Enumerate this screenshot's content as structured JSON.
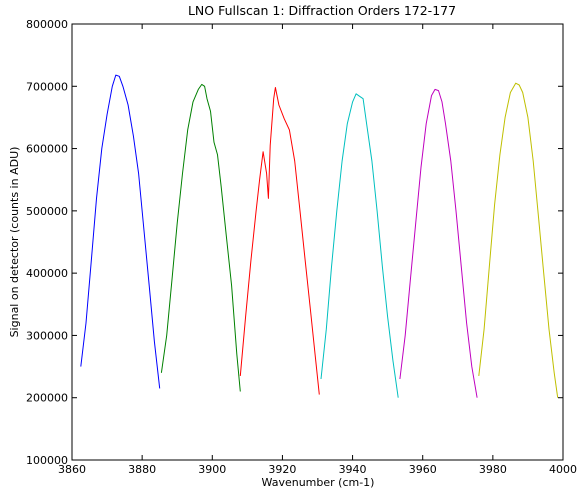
{
  "chart_data": {
    "type": "line",
    "title": "LNO Fullscan 1: Diffraction Orders 172-177",
    "xlabel": "Wavenumber (cm-1)",
    "ylabel": "Signal on detector (counts in ADU)",
    "xlim": [
      3860,
      4000
    ],
    "ylim": [
      100000,
      800000
    ],
    "xticks": [
      3860,
      3880,
      3900,
      3920,
      3940,
      3960,
      3980,
      4000
    ],
    "yticks": [
      100000,
      200000,
      300000,
      400000,
      500000,
      600000,
      700000,
      800000
    ],
    "grid": false,
    "legend": "none",
    "series": [
      {
        "color": "#0000ff",
        "x": [
          3862.5,
          3864,
          3865.5,
          3867,
          3868.5,
          3870,
          3871.5,
          3872.5,
          3873.5,
          3874.5,
          3876,
          3877.5,
          3879,
          3880.5,
          3882,
          3883.5,
          3885
        ],
        "y": [
          250000,
          320000,
          420000,
          520000,
          600000,
          655000,
          700000,
          718000,
          716000,
          700000,
          670000,
          620000,
          560000,
          470000,
          380000,
          290000,
          215000
        ]
      },
      {
        "color": "#008000",
        "x": [
          3885.5,
          3887,
          3888.5,
          3890,
          3891.5,
          3893,
          3894.5,
          3896,
          3897,
          3897.8,
          3898.5,
          3899.5,
          3900.5,
          3901.5,
          3902.5,
          3904,
          3905.5,
          3907,
          3908
        ],
        "y": [
          240000,
          300000,
          390000,
          480000,
          560000,
          630000,
          675000,
          695000,
          703000,
          700000,
          680000,
          660000,
          610000,
          590000,
          540000,
          460000,
          380000,
          270000,
          210000
        ]
      },
      {
        "color": "#ff0000",
        "x": [
          3908,
          3909.5,
          3911,
          3912.5,
          3913.5,
          3914.5,
          3915.5,
          3916,
          3916.5,
          3917.5,
          3918,
          3919,
          3920.5,
          3922,
          3923.5,
          3925,
          3926.5,
          3928,
          3929.5,
          3930.5
        ],
        "y": [
          235000,
          330000,
          420000,
          500000,
          550000,
          595000,
          560000,
          520000,
          605000,
          680000,
          698000,
          670000,
          648000,
          630000,
          580000,
          500000,
          420000,
          340000,
          260000,
          205000
        ]
      },
      {
        "color": "#00bfbf",
        "x": [
          3931,
          3932.5,
          3934,
          3935.5,
          3937,
          3938.5,
          3940,
          3941,
          3942,
          3943,
          3944,
          3945.5,
          3947,
          3948.5,
          3950,
          3951.5,
          3953
        ],
        "y": [
          230000,
          310000,
          410000,
          500000,
          580000,
          640000,
          675000,
          688000,
          684000,
          680000,
          640000,
          580000,
          500000,
          410000,
          330000,
          260000,
          200000
        ]
      },
      {
        "color": "#bf00bf",
        "x": [
          3953.5,
          3955,
          3956.5,
          3958,
          3959.5,
          3961,
          3962.5,
          3963.5,
          3964.5,
          3965.5,
          3966.5,
          3968,
          3969.5,
          3971,
          3972.5,
          3974,
          3975.5
        ],
        "y": [
          230000,
          300000,
          390000,
          480000,
          570000,
          640000,
          685000,
          695000,
          693000,
          675000,
          640000,
          580000,
          500000,
          410000,
          320000,
          250000,
          200000
        ]
      },
      {
        "color": "#bfbf00",
        "x": [
          3976,
          3977.5,
          3979,
          3980.5,
          3982,
          3983.5,
          3985,
          3986.5,
          3987.5,
          3988.5,
          3990,
          3991.5,
          3993,
          3994.5,
          3996,
          3997.5,
          3998.5
        ],
        "y": [
          235000,
          310000,
          410000,
          510000,
          590000,
          650000,
          690000,
          705000,
          702000,
          690000,
          650000,
          580000,
          490000,
          400000,
          310000,
          240000,
          200000
        ]
      }
    ]
  }
}
